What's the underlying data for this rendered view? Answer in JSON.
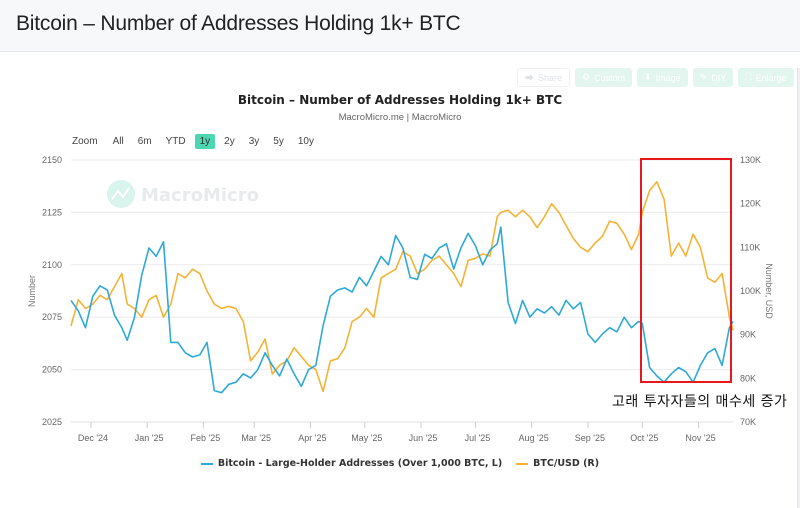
{
  "page": {
    "title": "Bitcoin – Number of Addresses Holding 1k+ BTC"
  },
  "toolbar": {
    "buttons": [
      {
        "label": "Share",
        "icon": "share-icon"
      },
      {
        "label": "Custom",
        "icon": "gear-icon"
      },
      {
        "label": "Image",
        "icon": "download-icon"
      },
      {
        "label": "DIY",
        "icon": "pencil-icon"
      },
      {
        "label": "Enlarge",
        "icon": "expand-icon"
      }
    ]
  },
  "zoom": {
    "label": "Zoom",
    "options": [
      "All",
      "6m",
      "YTD",
      "1y",
      "2y",
      "3y",
      "5y",
      "10y"
    ],
    "active": "1y"
  },
  "watermark": "MacroMicro",
  "annotation": {
    "text": "고래 투자자들의 매수세 증가",
    "color": "#e8191c"
  },
  "colors": {
    "addresses": "#2ea9d8",
    "btc": "#f5b335",
    "annotation": "#e8191c",
    "zoom_active": "#4dd6b2"
  },
  "chart_data": {
    "type": "line",
    "title": "Bitcoin – Number of Addresses Holding 1k+ BTC",
    "subtitle": "MacroMicro.me | MacroMicro",
    "xlabel": "",
    "x_ticks": [
      "Dec '24",
      "Jan '25",
      "Feb '25",
      "Mar '25",
      "Apr '25",
      "May '25",
      "Jun '25",
      "Jul '25",
      "Aug '25",
      "Sep '25",
      "Oct '25",
      "Nov '25"
    ],
    "y_left": {
      "label": "Number",
      "ticks": [
        2025,
        2050,
        2075,
        2100,
        2125,
        2150
      ],
      "range": [
        2025,
        2150
      ]
    },
    "y_right": {
      "label": "Number, USD",
      "ticks": [
        "70K",
        "80K",
        "90K",
        "100K",
        "110K",
        "120K",
        "130K"
      ],
      "range": [
        70000,
        130000
      ]
    },
    "grid": true,
    "legend_position": "bottom",
    "x_range": [
      "2024-11-20",
      "2025-11-20"
    ],
    "series": [
      {
        "name": "Bitcoin - Large-Holder Addresses (Over 1,000 BTC, L)",
        "axis": "left",
        "x": [
          "2024-11-20",
          "2024-11-24",
          "2024-11-28",
          "2024-12-02",
          "2024-12-06",
          "2024-12-10",
          "2024-12-14",
          "2024-12-18",
          "2024-12-21",
          "2024-12-25",
          "2024-12-29",
          "2025-01-02",
          "2025-01-06",
          "2025-01-10",
          "2025-01-14",
          "2025-01-18",
          "2025-01-22",
          "2025-01-26",
          "2025-01-30",
          "2025-02-03",
          "2025-02-07",
          "2025-02-11",
          "2025-02-15",
          "2025-02-19",
          "2025-02-23",
          "2025-02-27",
          "2025-03-03",
          "2025-03-07",
          "2025-03-11",
          "2025-03-15",
          "2025-03-19",
          "2025-03-23",
          "2025-03-27",
          "2025-03-31",
          "2025-04-04",
          "2025-04-08",
          "2025-04-12",
          "2025-04-16",
          "2025-04-20",
          "2025-04-24",
          "2025-04-28",
          "2025-05-02",
          "2025-05-06",
          "2025-05-10",
          "2025-05-14",
          "2025-05-18",
          "2025-05-22",
          "2025-05-26",
          "2025-05-30",
          "2025-06-03",
          "2025-06-07",
          "2025-06-11",
          "2025-06-15",
          "2025-06-19",
          "2025-06-23",
          "2025-06-27",
          "2025-07-01",
          "2025-07-05",
          "2025-07-09",
          "2025-07-13",
          "2025-07-15",
          "2025-07-19",
          "2025-07-23",
          "2025-07-27",
          "2025-07-31",
          "2025-08-04",
          "2025-08-08",
          "2025-08-12",
          "2025-08-16",
          "2025-08-20",
          "2025-08-24",
          "2025-08-28",
          "2025-09-01",
          "2025-09-05",
          "2025-09-09",
          "2025-09-13",
          "2025-09-17",
          "2025-09-21",
          "2025-09-25",
          "2025-09-29",
          "2025-10-01",
          "2025-10-05",
          "2025-10-09",
          "2025-10-13",
          "2025-10-17",
          "2025-10-21",
          "2025-10-25",
          "2025-10-29",
          "2025-11-02",
          "2025-11-06",
          "2025-11-10",
          "2025-11-14",
          "2025-11-18",
          "2025-11-20"
        ],
        "values": [
          2083,
          2078,
          2070,
          2085,
          2090,
          2088,
          2076,
          2070,
          2064,
          2075,
          2095,
          2108,
          2104,
          2111,
          2063,
          2063,
          2058,
          2056,
          2057,
          2063,
          2040,
          2039,
          2043,
          2044,
          2048,
          2046,
          2050,
          2058,
          2052,
          2047,
          2055,
          2048,
          2042,
          2050,
          2052,
          2071,
          2085,
          2088,
          2089,
          2087,
          2094,
          2090,
          2097,
          2104,
          2100,
          2114,
          2108,
          2094,
          2093,
          2105,
          2103,
          2108,
          2110,
          2098,
          2108,
          2115,
          2109,
          2100,
          2107,
          2110,
          2118,
          2082,
          2072,
          2083,
          2075,
          2079,
          2077,
          2080,
          2076,
          2083,
          2079,
          2082,
          2067,
          2063,
          2067,
          2070,
          2068,
          2075,
          2070,
          2073,
          2072,
          2051,
          2047,
          2044,
          2048,
          2051,
          2049,
          2044,
          2052,
          2058,
          2060,
          2052,
          2070,
          2073
        ]
      },
      {
        "name": "BTC/USD (R)",
        "axis": "right",
        "x": [
          "2024-11-20",
          "2024-11-24",
          "2024-11-28",
          "2024-12-02",
          "2024-12-06",
          "2024-12-10",
          "2024-12-14",
          "2024-12-18",
          "2024-12-21",
          "2024-12-25",
          "2024-12-29",
          "2025-01-02",
          "2025-01-06",
          "2025-01-10",
          "2025-01-14",
          "2025-01-18",
          "2025-01-22",
          "2025-01-26",
          "2025-01-30",
          "2025-02-03",
          "2025-02-07",
          "2025-02-11",
          "2025-02-15",
          "2025-02-19",
          "2025-02-23",
          "2025-02-27",
          "2025-03-03",
          "2025-03-07",
          "2025-03-11",
          "2025-03-15",
          "2025-03-19",
          "2025-03-23",
          "2025-03-27",
          "2025-03-31",
          "2025-04-04",
          "2025-04-08",
          "2025-04-12",
          "2025-04-16",
          "2025-04-20",
          "2025-04-24",
          "2025-04-28",
          "2025-05-02",
          "2025-05-06",
          "2025-05-10",
          "2025-05-14",
          "2025-05-18",
          "2025-05-22",
          "2025-05-26",
          "2025-05-30",
          "2025-06-03",
          "2025-06-07",
          "2025-06-11",
          "2025-06-15",
          "2025-06-19",
          "2025-06-23",
          "2025-06-27",
          "2025-07-01",
          "2025-07-05",
          "2025-07-09",
          "2025-07-13",
          "2025-07-15",
          "2025-07-19",
          "2025-07-23",
          "2025-07-27",
          "2025-07-31",
          "2025-08-04",
          "2025-08-08",
          "2025-08-12",
          "2025-08-16",
          "2025-08-20",
          "2025-08-24",
          "2025-08-28",
          "2025-09-01",
          "2025-09-05",
          "2025-09-09",
          "2025-09-13",
          "2025-09-17",
          "2025-09-21",
          "2025-09-25",
          "2025-09-29",
          "2025-10-01",
          "2025-10-05",
          "2025-10-09",
          "2025-10-13",
          "2025-10-17",
          "2025-10-21",
          "2025-10-25",
          "2025-10-29",
          "2025-11-02",
          "2025-11-06",
          "2025-11-10",
          "2025-11-14",
          "2025-11-18",
          "2025-11-20"
        ],
        "values": [
          92000,
          98000,
          96000,
          97000,
          99000,
          98000,
          101000,
          104000,
          97000,
          96000,
          94000,
          98000,
          99000,
          94000,
          97000,
          104000,
          103000,
          105000,
          104000,
          100000,
          97000,
          96000,
          96500,
          96000,
          93000,
          84000,
          86000,
          89000,
          81000,
          83000,
          84000,
          87000,
          85000,
          83000,
          82000,
          77000,
          84000,
          84500,
          87000,
          93000,
          94000,
          96000,
          94000,
          103000,
          104000,
          105000,
          109000,
          108000,
          104000,
          105000,
          107000,
          108000,
          106000,
          104000,
          101000,
          107000,
          107500,
          108500,
          108000,
          117000,
          118000,
          118500,
          117000,
          118500,
          117000,
          114500,
          117000,
          120000,
          118000,
          115000,
          112000,
          110000,
          109000,
          111000,
          112500,
          116000,
          115500,
          113000,
          109500,
          113000,
          118000,
          123000,
          125000,
          121000,
          108000,
          111000,
          108000,
          113000,
          110000,
          103000,
          102000,
          104000,
          94000,
          91000
        ]
      }
    ]
  },
  "legend": [
    {
      "label": "Bitcoin - Large-Holder Addresses (Over 1,000 BTC, L)",
      "color": "#2ea9d8"
    },
    {
      "label": "BTC/USD (R)",
      "color": "#f5b335"
    }
  ]
}
